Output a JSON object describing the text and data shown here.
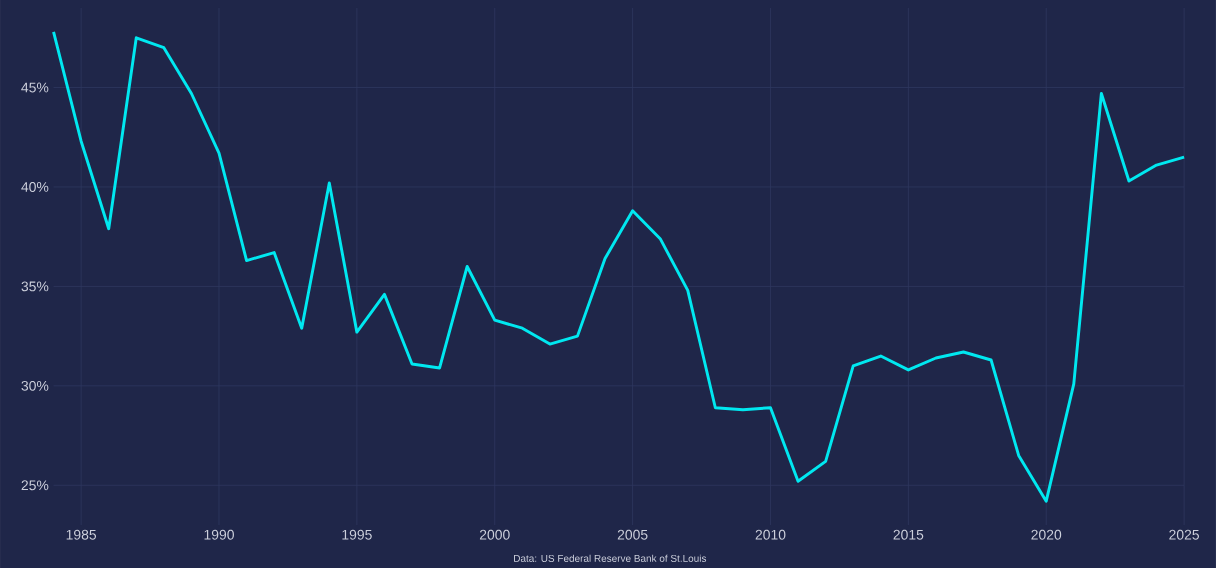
{
  "chart_data": {
    "type": "line",
    "x": [
      1984,
      1985,
      1986,
      1987,
      1988,
      1989,
      1990,
      1991,
      1992,
      1993,
      1994,
      1995,
      1996,
      1997,
      1998,
      1999,
      2000,
      2001,
      2002,
      2003,
      2004,
      2005,
      2006,
      2007,
      2008,
      2009,
      2010,
      2011,
      2012,
      2013,
      2014,
      2015,
      2016,
      2017,
      2018,
      2019,
      2020,
      2021,
      2022,
      2023,
      2024,
      2025
    ],
    "series": [
      {
        "color": "#00e8f0",
        "values": [
          47.8,
          42.3,
          37.9,
          47.5,
          47.0,
          44.7,
          41.7,
          36.3,
          36.7,
          32.9,
          40.2,
          32.7,
          34.6,
          31.1,
          30.9,
          36.0,
          33.3,
          32.9,
          32.1,
          32.5,
          36.4,
          38.8,
          37.4,
          34.8,
          28.9,
          28.8,
          28.9,
          25.2,
          26.2,
          31.0,
          31.5,
          30.8,
          31.4,
          31.7,
          31.3,
          26.5,
          24.2,
          30.1,
          44.7,
          40.3,
          41.1,
          41.5
        ]
      }
    ],
    "xlim": [
      1984,
      2025
    ],
    "ylim": [
      23,
      49
    ],
    "xticks": [
      1985,
      1990,
      1995,
      2000,
      2005,
      2010,
      2015,
      2020,
      2025
    ],
    "yticks": [
      {
        "value": 25,
        "label": "25%"
      },
      {
        "value": 30,
        "label": "30%"
      },
      {
        "value": 35,
        "label": "35%"
      },
      {
        "value": 40,
        "label": "40%"
      },
      {
        "value": 45,
        "label": "45%"
      }
    ],
    "grid": true,
    "marker": "none",
    "line_style": "solid",
    "annotations": [
      "Data: US Federal Reserve Bank of St.Louis"
    ]
  }
}
